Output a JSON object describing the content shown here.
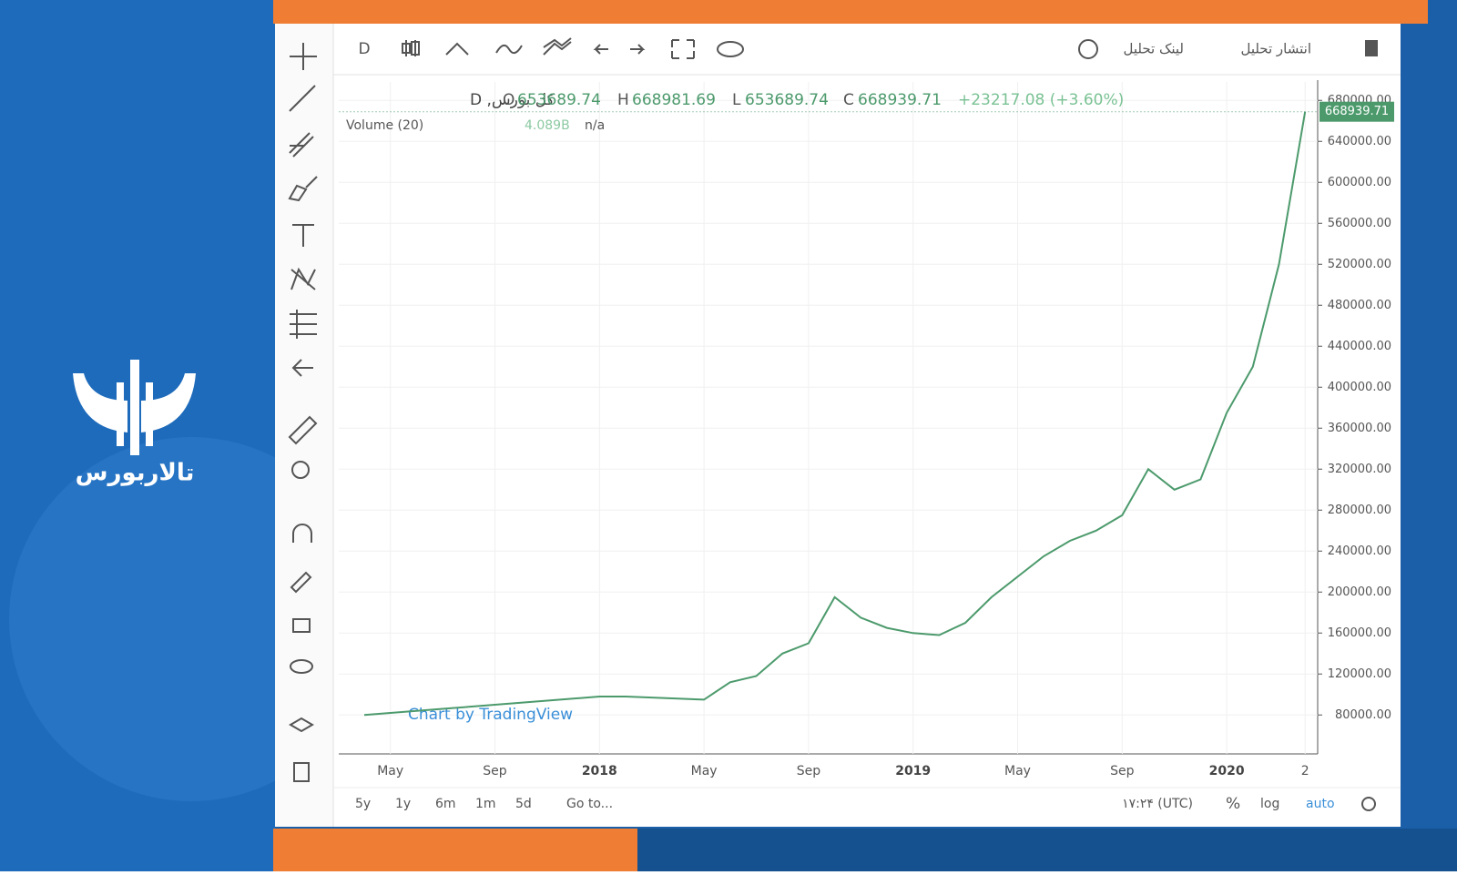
{
  "brand": "تالاربورس",
  "toolbar": {
    "interval": "D",
    "link": "لینک تحلیل",
    "publish": "انتشار تحلیل"
  },
  "legend": {
    "symbol": "کل بورس, D",
    "open_key": "O",
    "open": "653689.74",
    "high_key": "H",
    "high": "668981.69",
    "low_key": "L",
    "low": "653689.74",
    "close_key": "C",
    "close": "668939.71",
    "change": "+23217.08 (+3.60%)",
    "volume": "Volume (20)",
    "volume_value": "4.089B",
    "volume_ma": "n/a"
  },
  "watermark": "Chart by TradingView",
  "bottom_bar": {
    "ranges": [
      "5y",
      "1y",
      "6m",
      "1m",
      "5d"
    ],
    "goto": "Go to...",
    "time": "۱۷:۲۴ (UTC)",
    "percent": "%",
    "log": "log",
    "auto": "auto"
  },
  "chart_data": {
    "type": "line",
    "categories": [
      null,
      "May",
      null,
      null,
      null,
      "Sep",
      null,
      null,
      null,
      "2018",
      null,
      null,
      null,
      "May",
      null,
      null,
      null,
      "Sep",
      null,
      null,
      null,
      "2019",
      null,
      null,
      null,
      "May",
      null,
      null,
      null,
      "Sep",
      null,
      null,
      null,
      "2020",
      null,
      null,
      "2"
    ],
    "series": [
      {
        "name": "کل بورس",
        "color": "#4c9a6c",
        "values": [
          80000,
          82000,
          84000,
          86000,
          88000,
          90000,
          92000,
          94000,
          96000,
          98000,
          98000,
          97000,
          96000,
          95000,
          112000,
          118000,
          140000,
          150000,
          195000,
          175000,
          165000,
          160000,
          158000,
          170000,
          195000,
          215000,
          235000,
          250000,
          260000,
          275000,
          320000,
          300000,
          310000,
          375000,
          420000,
          520000,
          668939.71
        ]
      }
    ],
    "ylim": [
      42000,
      698000
    ],
    "yticks": [
      {
        "value": 80000,
        "label": "80000.00"
      },
      {
        "value": 120000,
        "label": "120000.00"
      },
      {
        "value": 160000,
        "label": "160000.00"
      },
      {
        "value": 200000,
        "label": "200000.00"
      },
      {
        "value": 240000,
        "label": "240000.00"
      },
      {
        "value": 280000,
        "label": "280000.00"
      },
      {
        "value": 320000,
        "label": "320000.00"
      },
      {
        "value": 360000,
        "label": "360000.00"
      },
      {
        "value": 400000,
        "label": "400000.00"
      },
      {
        "value": 440000,
        "label": "440000.00"
      },
      {
        "value": 480000,
        "label": "480000.00"
      },
      {
        "value": 520000,
        "label": "520000.00"
      },
      {
        "value": 560000,
        "label": "560000.00"
      },
      {
        "value": 600000,
        "label": "600000.00"
      },
      {
        "value": 640000,
        "label": "640000.00"
      },
      {
        "value": 680000,
        "label": "680000.00"
      }
    ],
    "grid": true
  }
}
